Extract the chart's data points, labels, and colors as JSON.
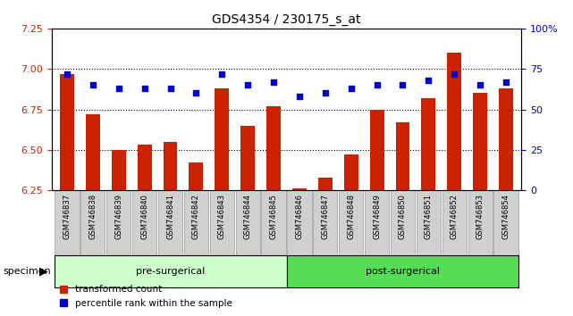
{
  "title": "GDS4354 / 230175_s_at",
  "samples": [
    "GSM746837",
    "GSM746838",
    "GSM746839",
    "GSM746840",
    "GSM746841",
    "GSM746842",
    "GSM746843",
    "GSM746844",
    "GSM746845",
    "GSM746846",
    "GSM746847",
    "GSM746848",
    "GSM746849",
    "GSM746850",
    "GSM746851",
    "GSM746852",
    "GSM746853",
    "GSM746854"
  ],
  "transformed_count": [
    6.97,
    6.72,
    6.5,
    6.53,
    6.55,
    6.42,
    6.88,
    6.65,
    6.77,
    6.26,
    6.33,
    6.47,
    6.75,
    6.67,
    6.82,
    7.1,
    6.85,
    6.88
  ],
  "percentile_rank": [
    72,
    65,
    63,
    63,
    63,
    60,
    72,
    65,
    67,
    58,
    60,
    63,
    65,
    65,
    68,
    72,
    65,
    67
  ],
  "pre_surgical_count": 9,
  "post_surgical_count": 9,
  "ylim_left": [
    6.25,
    7.25
  ],
  "ylim_right": [
    0,
    100
  ],
  "yticks_left": [
    6.25,
    6.5,
    6.75,
    7.0,
    7.25
  ],
  "yticks_right": [
    0,
    25,
    50,
    75,
    100
  ],
  "ytick_labels_right": [
    "0",
    "25",
    "50",
    "75",
    "100%"
  ],
  "bar_color": "#cc2200",
  "dot_color": "#0000cc",
  "pre_surgical_color": "#ccffcc",
  "post_surgical_color": "#55dd55",
  "grid_color": "black",
  "tick_color_left": "#cc2200",
  "tick_color_right": "#0000cc",
  "legend_bar_label": "transformed count",
  "legend_dot_label": "percentile rank within the sample",
  "specimen_label": "specimen",
  "pre_label": "pre-surgerical",
  "post_label": "post-surgerical",
  "figsize": [
    6.41,
    3.54
  ],
  "dpi": 100
}
